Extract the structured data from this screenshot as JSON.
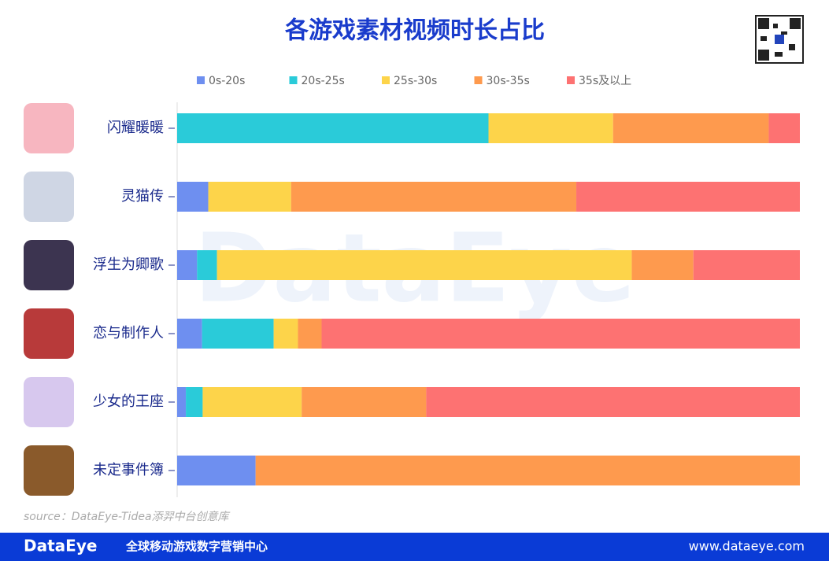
{
  "chart_data": {
    "type": "bar",
    "orientation": "horizontal",
    "stacked": true,
    "title": "各游戏素材视频时长占比",
    "categories": [
      "闪耀暖暖",
      "灵猫传",
      "浮生为卿歌",
      "恋与制作人",
      "少女的王座",
      "未定事件簿"
    ],
    "series": [
      {
        "name": "0s-20s",
        "color": "#6e8ff0",
        "values": [
          0,
          5,
          3.2,
          4,
          1.4,
          12.6
        ]
      },
      {
        "name": "20s-25s",
        "color": "#2acbd9",
        "values": [
          50,
          0,
          3.2,
          11.5,
          2.7,
          0
        ]
      },
      {
        "name": "25s-30s",
        "color": "#fdd44a",
        "values": [
          20,
          13.3,
          66.6,
          3.9,
          15.9,
          0
        ]
      },
      {
        "name": "30s-35s",
        "color": "#fe9a4e",
        "values": [
          25,
          45.8,
          9.9,
          3.8,
          20,
          87.4
        ]
      },
      {
        "name": "35s及以上",
        "color": "#fd7272",
        "values": [
          5,
          35.9,
          17.1,
          76.8,
          60,
          0
        ]
      }
    ],
    "xlim": [
      0,
      100
    ],
    "source": "source：DataEye-Tidea添羿中台创意库",
    "watermark": "DataEye"
  },
  "footer": {
    "brand": "DataEye",
    "slogan": "全球移动游戏数字营销中心",
    "url": "www.dataeye.com"
  }
}
